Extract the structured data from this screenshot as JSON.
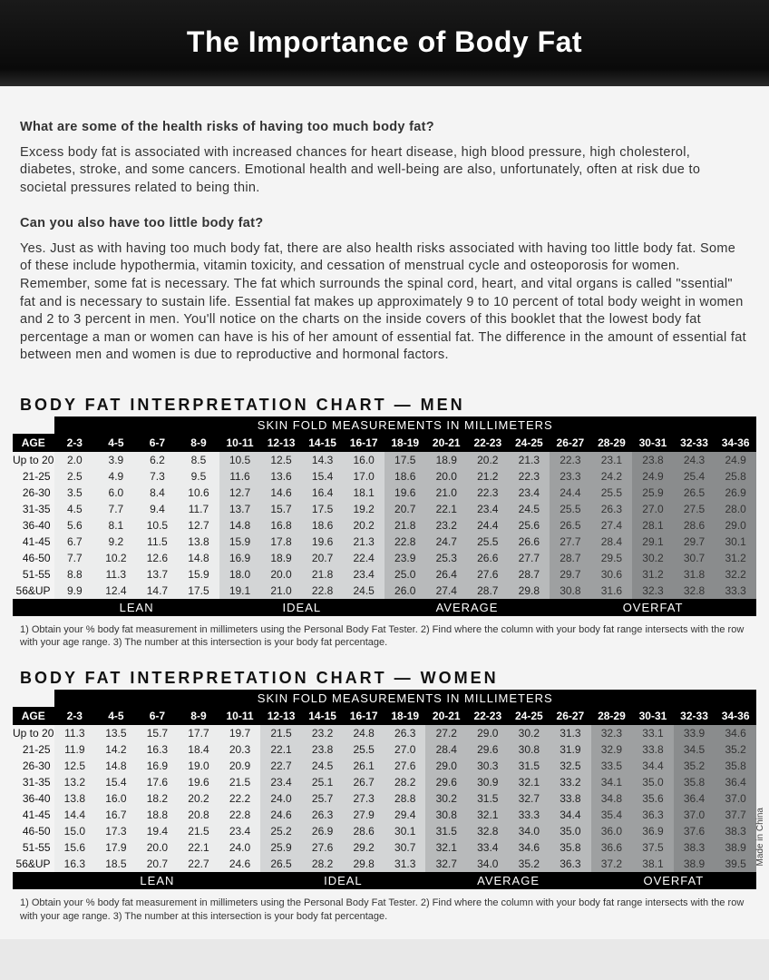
{
  "title": "The Importance of Body Fat",
  "q1": "What are some of the health risks of having too much body fat?",
  "a1": "Excess body fat is associated with increased chances for heart disease, high blood pressure, high cholesterol, diabetes, stroke, and some cancers. Emotional health and well-being are also, unfortunately, often at risk due to societal pressures related to being thin.",
  "q2": "Can you also have too little body fat?",
  "a2": "Yes. Just as with having too much body fat, there are also health risks associated with having too little body fat. Some of these include hypothermia, vitamin toxicity, and cessation of menstrual cycle and osteoporosis for women. Remember, some fat is necessary. The fat which surrounds the spinal cord, heart, and vital organs is called \"ssential\" fat and is necessary to sustain life. Essential fat makes up approximately 9 to 10 percent of total body weight in women and 2 to 3 percent in men. You'll notice on the charts on the inside covers of this booklet that the lowest body fat percentage a man or women can have is his of her amount of essential fat. The difference in the amount of essential fat between men and women is due to reproductive and hormonal factors.",
  "men_chart_title": "BODY FAT INTERPRETATION CHART — MEN",
  "women_chart_title": "BODY FAT INTERPRETATION CHART — WOMEN",
  "table_header": "SKIN FOLD MEASUREMENTS IN MILLIMETERS",
  "age_label": "AGE",
  "skinfold_cols": [
    "2-3",
    "4-5",
    "6-7",
    "8-9",
    "10-11",
    "12-13",
    "14-15",
    "16-17",
    "18-19",
    "20-21",
    "22-23",
    "24-25",
    "26-27",
    "28-29",
    "30-31",
    "32-33",
    "34-36"
  ],
  "men_rows": [
    {
      "age": "Up to 20",
      "v": [
        "2.0",
        "3.9",
        "6.2",
        "8.5",
        "10.5",
        "12.5",
        "14.3",
        "16.0",
        "17.5",
        "18.9",
        "20.2",
        "21.3",
        "22.3",
        "23.1",
        "23.8",
        "24.3",
        "24.9"
      ]
    },
    {
      "age": "21-25",
      "v": [
        "2.5",
        "4.9",
        "7.3",
        "9.5",
        "11.6",
        "13.6",
        "15.4",
        "17.0",
        "18.6",
        "20.0",
        "21.2",
        "22.3",
        "23.3",
        "24.2",
        "24.9",
        "25.4",
        "25.8"
      ]
    },
    {
      "age": "26-30",
      "v": [
        "3.5",
        "6.0",
        "8.4",
        "10.6",
        "12.7",
        "14.6",
        "16.4",
        "18.1",
        "19.6",
        "21.0",
        "22.3",
        "23.4",
        "24.4",
        "25.5",
        "25.9",
        "26.5",
        "26.9"
      ]
    },
    {
      "age": "31-35",
      "v": [
        "4.5",
        "7.7",
        "9.4",
        "11.7",
        "13.7",
        "15.7",
        "17.5",
        "19.2",
        "20.7",
        "22.1",
        "23.4",
        "24.5",
        "25.5",
        "26.3",
        "27.0",
        "27.5",
        "28.0"
      ]
    },
    {
      "age": "36-40",
      "v": [
        "5.6",
        "8.1",
        "10.5",
        "12.7",
        "14.8",
        "16.8",
        "18.6",
        "20.2",
        "21.8",
        "23.2",
        "24.4",
        "25.6",
        "26.5",
        "27.4",
        "28.1",
        "28.6",
        "29.0"
      ]
    },
    {
      "age": "41-45",
      "v": [
        "6.7",
        "9.2",
        "11.5",
        "13.8",
        "15.9",
        "17.8",
        "19.6",
        "21.3",
        "22.8",
        "24.7",
        "25.5",
        "26.6",
        "27.7",
        "28.4",
        "29.1",
        "29.7",
        "30.1"
      ]
    },
    {
      "age": "46-50",
      "v": [
        "7.7",
        "10.2",
        "12.6",
        "14.8",
        "16.9",
        "18.9",
        "20.7",
        "22.4",
        "23.9",
        "25.3",
        "26.6",
        "27.7",
        "28.7",
        "29.5",
        "30.2",
        "30.7",
        "31.2"
      ]
    },
    {
      "age": "51-55",
      "v": [
        "8.8",
        "11.3",
        "13.7",
        "15.9",
        "18.0",
        "20.0",
        "21.8",
        "23.4",
        "25.0",
        "26.4",
        "27.6",
        "28.7",
        "29.7",
        "30.6",
        "31.2",
        "31.8",
        "32.2"
      ]
    },
    {
      "age": "56&UP",
      "v": [
        "9.9",
        "12.4",
        "14.7",
        "17.5",
        "19.1",
        "21.0",
        "22.8",
        "24.5",
        "26.0",
        "27.4",
        "28.7",
        "29.8",
        "30.8",
        "31.6",
        "32.3",
        "32.8",
        "33.3"
      ]
    }
  ],
  "women_rows": [
    {
      "age": "Up to 20",
      "v": [
        "11.3",
        "13.5",
        "15.7",
        "17.7",
        "19.7",
        "21.5",
        "23.2",
        "24.8",
        "26.3",
        "27.2",
        "29.0",
        "30.2",
        "31.3",
        "32.3",
        "33.1",
        "33.9",
        "34.6"
      ]
    },
    {
      "age": "21-25",
      "v": [
        "11.9",
        "14.2",
        "16.3",
        "18.4",
        "20.3",
        "22.1",
        "23.8",
        "25.5",
        "27.0",
        "28.4",
        "29.6",
        "30.8",
        "31.9",
        "32.9",
        "33.8",
        "34.5",
        "35.2"
      ]
    },
    {
      "age": "26-30",
      "v": [
        "12.5",
        "14.8",
        "16.9",
        "19.0",
        "20.9",
        "22.7",
        "24.5",
        "26.1",
        "27.6",
        "29.0",
        "30.3",
        "31.5",
        "32.5",
        "33.5",
        "34.4",
        "35.2",
        "35.8"
      ]
    },
    {
      "age": "31-35",
      "v": [
        "13.2",
        "15.4",
        "17.6",
        "19.6",
        "21.5",
        "23.4",
        "25.1",
        "26.7",
        "28.2",
        "29.6",
        "30.9",
        "32.1",
        "33.2",
        "34.1",
        "35.0",
        "35.8",
        "36.4"
      ]
    },
    {
      "age": "36-40",
      "v": [
        "13.8",
        "16.0",
        "18.2",
        "20.2",
        "22.2",
        "24.0",
        "25.7",
        "27.3",
        "28.8",
        "30.2",
        "31.5",
        "32.7",
        "33.8",
        "34.8",
        "35.6",
        "36.4",
        "37.0"
      ]
    },
    {
      "age": "41-45",
      "v": [
        "14.4",
        "16.7",
        "18.8",
        "20.8",
        "22.8",
        "24.6",
        "26.3",
        "27.9",
        "29.4",
        "30.8",
        "32.1",
        "33.3",
        "34.4",
        "35.4",
        "36.3",
        "37.0",
        "37.7"
      ]
    },
    {
      "age": "46-50",
      "v": [
        "15.0",
        "17.3",
        "19.4",
        "21.5",
        "23.4",
        "25.2",
        "26.9",
        "28.6",
        "30.1",
        "31.5",
        "32.8",
        "34.0",
        "35.0",
        "36.0",
        "36.9",
        "37.6",
        "38.3"
      ]
    },
    {
      "age": "51-55",
      "v": [
        "15.6",
        "17.9",
        "20.0",
        "22.1",
        "24.0",
        "25.9",
        "27.6",
        "29.2",
        "30.7",
        "32.1",
        "33.4",
        "34.6",
        "35.8",
        "36.6",
        "37.5",
        "38.3",
        "38.9"
      ]
    },
    {
      "age": "56&UP",
      "v": [
        "16.3",
        "18.5",
        "20.7",
        "22.7",
        "24.6",
        "26.5",
        "28.2",
        "29.8",
        "31.3",
        "32.7",
        "34.0",
        "35.2",
        "36.3",
        "37.2",
        "38.1",
        "38.9",
        "39.5"
      ]
    }
  ],
  "categories": [
    "LEAN",
    "IDEAL",
    "AVERAGE",
    "OVERFAT"
  ],
  "footnote": "1) Obtain your % body fat measurement in millimeters using the Personal Body Fat Tester. 2) Find where the column with your body fat range intersects with the row with your age range. 3) The number at this intersection is your body fat percentage.",
  "made_in": "Made in China",
  "colors": {
    "banner_bg": "#0a0a0a",
    "banner_text": "#ffffff",
    "page_bg": "#f4f4f4",
    "lean": "#eceded",
    "ideal": "#d3d5d6",
    "average": "#b8babb",
    "overfat": "#9ea0a1"
  },
  "band_map_men": [
    "lean",
    "lean",
    "lean",
    "lean",
    "ideal",
    "ideal",
    "ideal",
    "ideal",
    "avg",
    "avg",
    "avg",
    "avg",
    "over",
    "over",
    "over2",
    "over2",
    "over2"
  ],
  "band_map_women": [
    "lean",
    "lean",
    "lean",
    "lean",
    "lean",
    "ideal",
    "ideal",
    "ideal",
    "ideal",
    "avg",
    "avg",
    "avg",
    "avg",
    "over",
    "over",
    "over2",
    "over2"
  ]
}
